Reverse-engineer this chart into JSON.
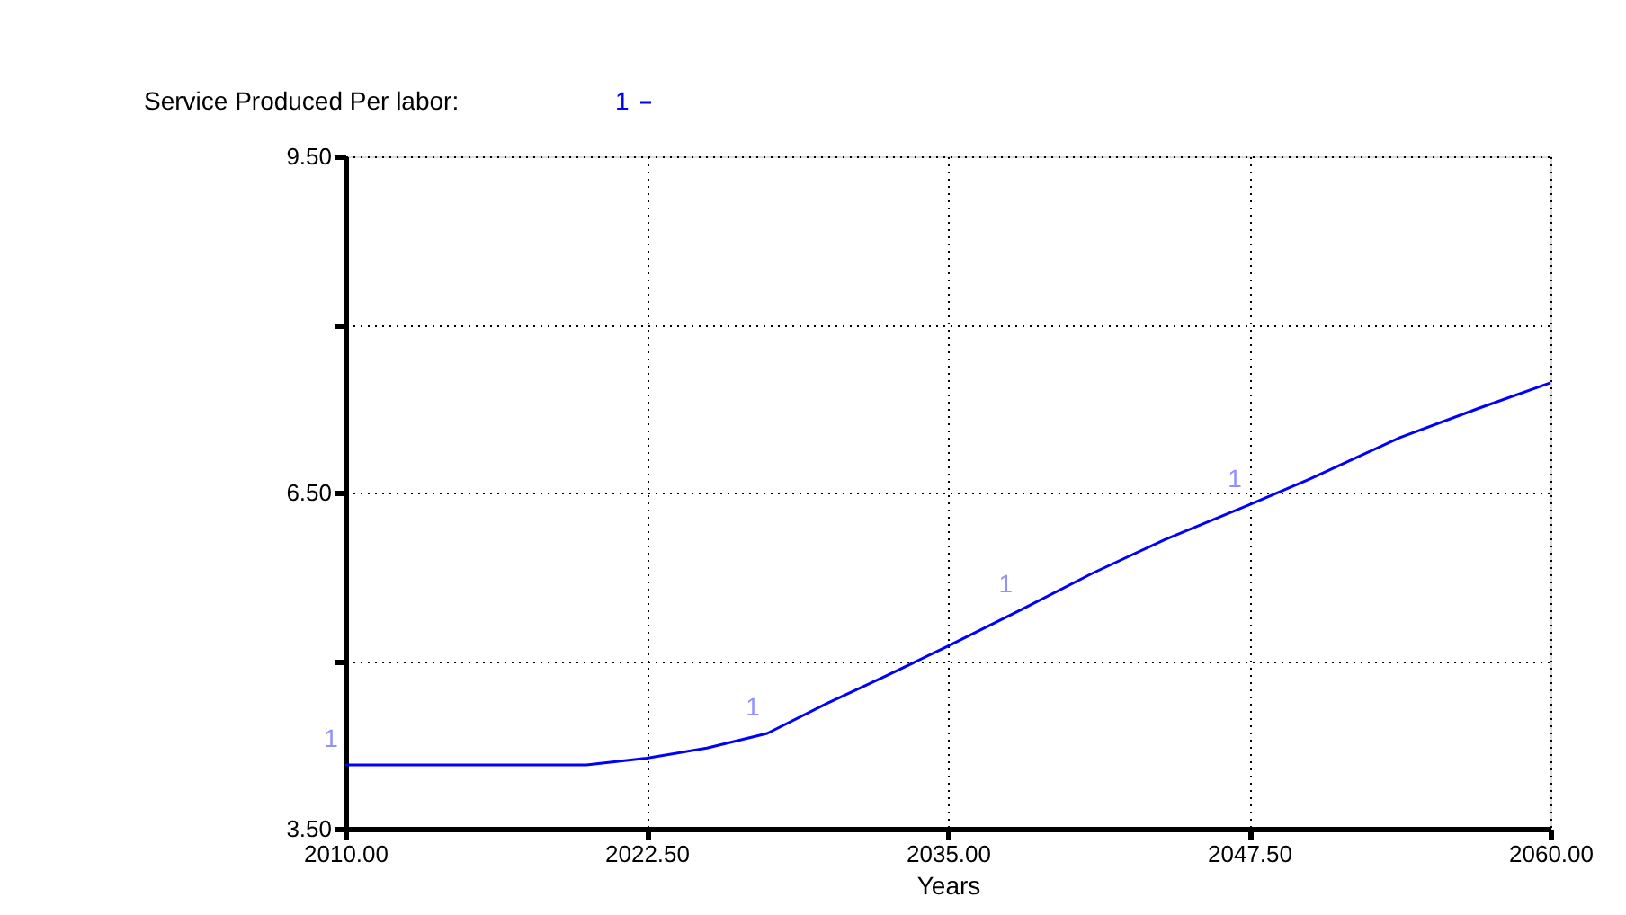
{
  "chart_data": {
    "type": "line",
    "title": "Service Produced  Per labor:",
    "xlabel": "Years",
    "x": [
      2010,
      2020,
      2022.5,
      2025,
      2027.5,
      2030,
      2032.5,
      2035,
      2038,
      2041,
      2044,
      2047.5,
      2050,
      2053.75,
      2057,
      2060
    ],
    "series": [
      {
        "name": "1",
        "color": "#0000ff",
        "values": [
          4.07,
          4.07,
          4.13,
          4.22,
          4.35,
          4.62,
          4.87,
          5.13,
          5.45,
          5.78,
          6.08,
          6.39,
          6.62,
          6.99,
          7.25,
          7.48
        ]
      }
    ],
    "xlim": [
      2010,
      2060
    ],
    "xticks": [
      {
        "value": 2010,
        "label": "2010.00"
      },
      {
        "value": 2022.5,
        "label": "2022.50"
      },
      {
        "value": 2035,
        "label": "2035.00"
      },
      {
        "value": 2047.5,
        "label": "2047.50"
      },
      {
        "value": 2060,
        "label": "2060.00"
      }
    ],
    "ylim": [
      3.5,
      9.5
    ],
    "yticks": [
      {
        "value": 3.5,
        "label": "3.50"
      },
      {
        "value": 5,
        "label": null
      },
      {
        "value": 6.5,
        "label": "6.50"
      },
      {
        "value": 8,
        "label": null
      },
      {
        "value": 9.5,
        "label": "9.50"
      }
    ],
    "grid": true,
    "legend": "top left",
    "marker": "none",
    "line_style": "solid"
  }
}
